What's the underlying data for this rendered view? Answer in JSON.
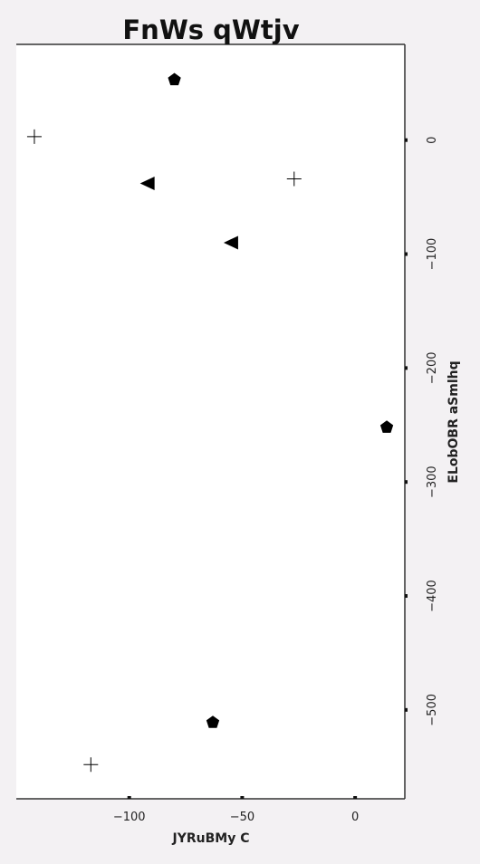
{
  "chart_data": {
    "type": "scatter",
    "title": "FnWs qWtjv",
    "xlabel": "JYRuBMy C",
    "ylabel": "ELobOBR aSmlhq",
    "xlim": [
      -150,
      22
    ],
    "ylim": [
      -578,
      84
    ],
    "x_ticks": [
      {
        "value": -100,
        "label": "−100"
      },
      {
        "value": -50,
        "label": "−50"
      },
      {
        "value": 0,
        "label": "0"
      }
    ],
    "y_ticks": [
      {
        "value": 0,
        "label": "0"
      },
      {
        "value": -100,
        "label": "−100"
      },
      {
        "value": -200,
        "label": "−200"
      },
      {
        "value": -300,
        "label": "−300"
      },
      {
        "value": -400,
        "label": "−400"
      },
      {
        "value": -500,
        "label": "−500"
      }
    ],
    "grid": false,
    "series": [
      {
        "marker": "pentagon",
        "color": "#000000",
        "points": [
          [
            -80,
            53
          ],
          [
            14,
            -252
          ],
          [
            -63,
            -511
          ]
        ]
      },
      {
        "marker": "triangle-left",
        "color": "#000000",
        "points": [
          [
            -92,
            -38
          ],
          [
            -55,
            -90
          ]
        ]
      },
      {
        "marker": "plus",
        "color": "#000000",
        "points": [
          [
            -142,
            3
          ],
          [
            -27,
            -34
          ],
          [
            -117,
            -548
          ]
        ]
      }
    ]
  }
}
